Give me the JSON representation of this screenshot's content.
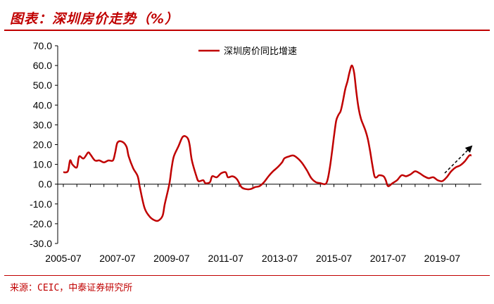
{
  "header": {
    "title": "图表：深圳房价走势（%）"
  },
  "footer": {
    "source": "来源：CEIC，中泰证券研究所"
  },
  "chart_data": {
    "type": "line",
    "title": "",
    "xlabel": "",
    "ylabel": "",
    "ylim": [
      -30,
      70
    ],
    "y_ticks": [
      -30,
      -20,
      -10,
      0,
      10,
      20,
      30,
      40,
      50,
      60,
      70
    ],
    "y_tick_labels": [
      "-30.0",
      "-20.0",
      "-10.0",
      "0.0",
      "10.0",
      "20.0",
      "30.0",
      "40.0",
      "50.0",
      "60.0",
      "70.0"
    ],
    "x_tick_labels": [
      "2005-07",
      "2007-07",
      "2009-07",
      "2011-07",
      "2013-07",
      "2015-07",
      "2017-07",
      "2019-07"
    ],
    "legend_position": "top-center",
    "trend_arrow": true,
    "series": [
      {
        "name": "深圳房价同比增速",
        "color": "#c00000",
        "points": [
          [
            "2005-07",
            6
          ],
          [
            "2005-09",
            6.5
          ],
          [
            "2005-10",
            12
          ],
          [
            "2005-11",
            10
          ],
          [
            "2006-01",
            8.5
          ],
          [
            "2006-02",
            14
          ],
          [
            "2006-04",
            13
          ],
          [
            "2006-06",
            16
          ],
          [
            "2006-07",
            15
          ],
          [
            "2006-09",
            12
          ],
          [
            "2006-11",
            12
          ],
          [
            "2007-01",
            11
          ],
          [
            "2007-03",
            12
          ],
          [
            "2007-05",
            12
          ],
          [
            "2007-06",
            16
          ],
          [
            "2007-07",
            21
          ],
          [
            "2007-09",
            21.5
          ],
          [
            "2007-11",
            19
          ],
          [
            "2007-12",
            14
          ],
          [
            "2008-02",
            8
          ],
          [
            "2008-04",
            4
          ],
          [
            "2008-05",
            -2
          ],
          [
            "2008-07",
            -12
          ],
          [
            "2008-09",
            -16
          ],
          [
            "2008-11",
            -18
          ],
          [
            "2009-01",
            -18.5
          ],
          [
            "2009-03",
            -16
          ],
          [
            "2009-04",
            -10
          ],
          [
            "2009-06",
            0
          ],
          [
            "2009-07",
            8
          ],
          [
            "2009-08",
            14
          ],
          [
            "2009-10",
            19
          ],
          [
            "2009-12",
            24
          ],
          [
            "2010-02",
            23.5
          ],
          [
            "2010-03",
            20
          ],
          [
            "2010-04",
            12
          ],
          [
            "2010-06",
            4
          ],
          [
            "2010-07",
            1.5
          ],
          [
            "2010-09",
            2
          ],
          [
            "2010-10",
            0.5
          ],
          [
            "2010-12",
            1
          ],
          [
            "2011-01",
            4
          ],
          [
            "2011-03",
            3.5
          ],
          [
            "2011-05",
            5.5
          ],
          [
            "2011-07",
            6
          ],
          [
            "2011-08",
            3.5
          ],
          [
            "2011-10",
            4
          ],
          [
            "2011-12",
            2.5
          ],
          [
            "2012-02",
            -1.5
          ],
          [
            "2012-04",
            -2.5
          ],
          [
            "2012-06",
            -2.5
          ],
          [
            "2012-08",
            -1.5
          ],
          [
            "2012-10",
            -1
          ],
          [
            "2012-12",
            1
          ],
          [
            "2013-02",
            4
          ],
          [
            "2013-04",
            6.5
          ],
          [
            "2013-06",
            8.5
          ],
          [
            "2013-08",
            11
          ],
          [
            "2013-09",
            13
          ],
          [
            "2013-11",
            14
          ],
          [
            "2014-01",
            14.5
          ],
          [
            "2014-03",
            13
          ],
          [
            "2014-05",
            10.5
          ],
          [
            "2014-07",
            7
          ],
          [
            "2014-09",
            3
          ],
          [
            "2014-11",
            1
          ],
          [
            "2015-01",
            0.5
          ],
          [
            "2015-03",
            0
          ],
          [
            "2015-04",
            1.5
          ],
          [
            "2015-05",
            7
          ],
          [
            "2015-06",
            15
          ],
          [
            "2015-07",
            24
          ],
          [
            "2015-08",
            32
          ],
          [
            "2015-09",
            35
          ],
          [
            "2015-10",
            37
          ],
          [
            "2015-11",
            42
          ],
          [
            "2015-12",
            48
          ],
          [
            "2016-01",
            52
          ],
          [
            "2016-02",
            57
          ],
          [
            "2016-03",
            60
          ],
          [
            "2016-04",
            56
          ],
          [
            "2016-05",
            46
          ],
          [
            "2016-06",
            38
          ],
          [
            "2016-07",
            33
          ],
          [
            "2016-08",
            30
          ],
          [
            "2016-09",
            27
          ],
          [
            "2016-10",
            23
          ],
          [
            "2016-11",
            17
          ],
          [
            "2016-12",
            10
          ],
          [
            "2017-01",
            4
          ],
          [
            "2017-02",
            3.5
          ],
          [
            "2017-03",
            4.5
          ],
          [
            "2017-05",
            4
          ],
          [
            "2017-06",
            2
          ],
          [
            "2017-07",
            -1
          ],
          [
            "2017-09",
            0.5
          ],
          [
            "2017-11",
            2
          ],
          [
            "2018-01",
            4.5
          ],
          [
            "2018-03",
            4
          ],
          [
            "2018-05",
            5
          ],
          [
            "2018-07",
            6.5
          ],
          [
            "2018-09",
            5.5
          ],
          [
            "2018-11",
            4
          ],
          [
            "2019-01",
            3
          ],
          [
            "2019-03",
            3.5
          ],
          [
            "2019-05",
            2
          ],
          [
            "2019-07",
            1.5
          ],
          [
            "2019-09",
            3.5
          ],
          [
            "2019-11",
            6.5
          ],
          [
            "2020-01",
            8.5
          ],
          [
            "2020-03",
            9.5
          ],
          [
            "2020-05",
            11.5
          ],
          [
            "2020-07",
            14.5
          ],
          [
            "2020-08",
            14.5
          ]
        ]
      }
    ]
  }
}
